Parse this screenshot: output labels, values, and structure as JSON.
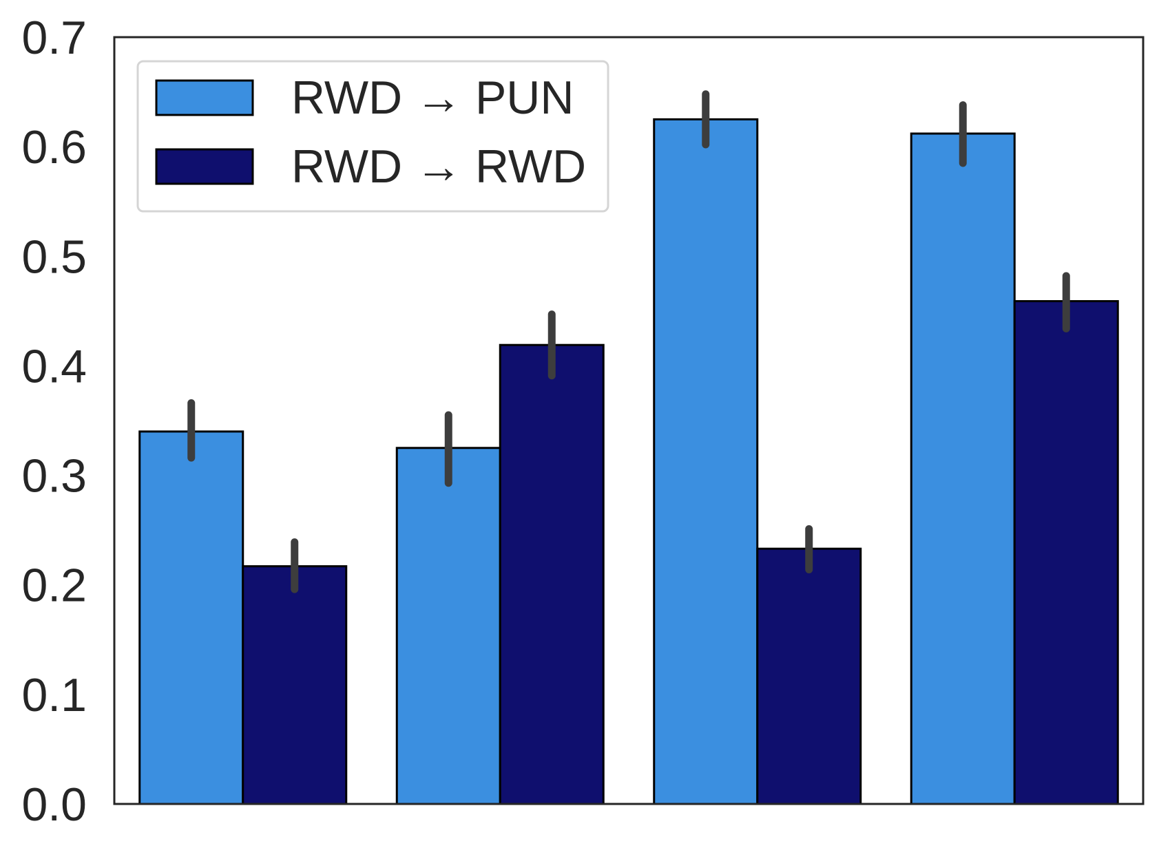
{
  "chart_data": {
    "type": "bar",
    "title": "",
    "xlabel": "",
    "ylabel": "",
    "categories": [
      "",
      "",
      "",
      ""
    ],
    "ylim": [
      0,
      0.7
    ],
    "yticks": [
      "0.0",
      "0.1",
      "0.2",
      "0.3",
      "0.4",
      "0.5",
      "0.6",
      "0.7"
    ],
    "ytick_values": [
      0.0,
      0.1,
      0.2,
      0.3,
      0.4,
      0.5,
      0.6,
      0.7
    ],
    "grid": false,
    "legend": {
      "placement": "top-left",
      "entries": [
        "RWD → PUN",
        "RWD → RWD"
      ]
    },
    "error_bars": true,
    "series": [
      {
        "name": "RWD → PUN",
        "color": "#3b8fe0",
        "values": [
          0.34,
          0.325,
          0.625,
          0.612
        ],
        "err_low": [
          0.316,
          0.293,
          0.602,
          0.585
        ],
        "err_high": [
          0.366,
          0.355,
          0.648,
          0.638
        ]
      },
      {
        "name": "RWD → RWD",
        "color": "#0f0f6e",
        "values": [
          0.217,
          0.419,
          0.233,
          0.459
        ],
        "err_low": [
          0.196,
          0.391,
          0.214,
          0.434
        ],
        "err_high": [
          0.239,
          0.447,
          0.251,
          0.482
        ]
      }
    ],
    "colors": {
      "frame": "#262626",
      "bar_edge": "#000000",
      "error_bar": "#3d3d3d",
      "legend_border": "#d5d5d5"
    }
  }
}
